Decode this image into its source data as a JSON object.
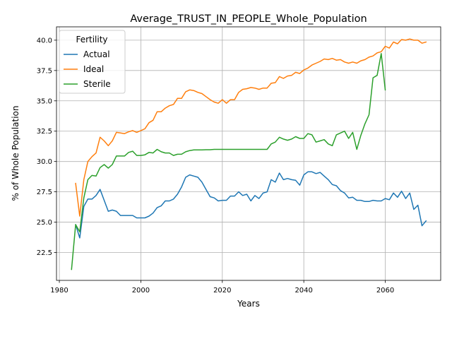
{
  "chart_data": {
    "type": "line",
    "title": "Average_TRUST_IN_PEOPLE_Whole_Population",
    "xlabel": "Years",
    "ylabel": "% of Whole Population",
    "xlim": [
      1979.3,
      1973.6
    ],
    "ylim": [
      20.2,
      41.1
    ],
    "xticks": [
      1980,
      2000,
      2020,
      2040,
      2060
    ],
    "yticks": [
      22.5,
      25.0,
      27.5,
      30.0,
      32.5,
      35.0,
      37.5,
      40.0
    ],
    "grid": true,
    "legend": {
      "title": "Fertility",
      "position": "top-left"
    },
    "series": [
      {
        "name": "Actual",
        "color": "#1f77b4",
        "x": [
          1984,
          1985,
          1986,
          1987,
          1988,
          1989,
          1990,
          1991,
          1992,
          1993,
          1994,
          1995,
          1996,
          1997,
          1998,
          1999,
          2000,
          2001,
          2002,
          2003,
          2004,
          2005,
          2006,
          2007,
          2008,
          2009,
          2010,
          2011,
          2012,
          2013,
          2014,
          2015,
          2016,
          2017,
          2018,
          2019,
          2020,
          2021,
          2022,
          2023,
          2024,
          2025,
          2026,
          2027,
          2028,
          2029,
          2030,
          2031,
          2032,
          2033,
          2034,
          2035,
          2036,
          2037,
          2038,
          2039,
          2040,
          2041,
          2042,
          2043,
          2044,
          2045,
          2046,
          2047,
          2048,
          2049,
          2050,
          2051,
          2052,
          2053,
          2054,
          2055,
          2056,
          2057,
          2058,
          2059,
          2060,
          2061,
          2062,
          2063,
          2064,
          2065,
          2066,
          2067,
          2068,
          2069,
          2070
        ],
        "y": [
          24.8,
          23.7,
          26.3,
          26.9,
          26.9,
          27.2,
          27.7,
          26.8,
          25.9,
          26.0,
          25.9,
          25.55,
          25.55,
          25.55,
          25.55,
          25.35,
          25.35,
          25.35,
          25.5,
          25.75,
          26.2,
          26.35,
          26.75,
          26.75,
          26.9,
          27.3,
          27.9,
          28.7,
          28.9,
          28.8,
          28.7,
          28.3,
          27.7,
          27.1,
          27.0,
          26.75,
          26.8,
          26.8,
          27.15,
          27.15,
          27.5,
          27.2,
          27.3,
          26.75,
          27.2,
          26.95,
          27.4,
          27.5,
          28.5,
          28.3,
          29.05,
          28.5,
          28.6,
          28.5,
          28.45,
          28.05,
          28.9,
          29.15,
          29.15,
          29.0,
          29.1,
          28.8,
          28.5,
          28.1,
          28.0,
          27.6,
          27.4,
          27.0,
          27.05,
          26.8,
          26.8,
          26.7,
          26.7,
          26.8,
          26.75,
          26.75,
          26.95,
          26.85,
          27.4,
          27.05,
          27.55,
          26.95,
          27.4,
          26.05,
          26.4,
          24.7,
          25.1
        ]
      },
      {
        "name": "Ideal",
        "color": "#ff7f0e",
        "x": [
          1984,
          1985,
          1986,
          1987,
          1988,
          1989,
          1990,
          1991,
          1992,
          1993,
          1994,
          1995,
          1996,
          1997,
          1998,
          1999,
          2000,
          2001,
          2002,
          2003,
          2004,
          2005,
          2006,
          2007,
          2008,
          2009,
          2010,
          2011,
          2012,
          2013,
          2014,
          2015,
          2016,
          2017,
          2018,
          2019,
          2020,
          2021,
          2022,
          2023,
          2024,
          2025,
          2026,
          2027,
          2028,
          2029,
          2030,
          2031,
          2032,
          2033,
          2034,
          2035,
          2036,
          2037,
          2038,
          2039,
          2040,
          2041,
          2042,
          2043,
          2044,
          2045,
          2046,
          2047,
          2048,
          2049,
          2050,
          2051,
          2052,
          2053,
          2054,
          2055,
          2056,
          2057,
          2058,
          2059,
          2060,
          2061,
          2062,
          2063,
          2064,
          2065,
          2066,
          2067,
          2068,
          2069,
          2070
        ],
        "y": [
          28.2,
          25.5,
          28.5,
          30.0,
          30.4,
          30.7,
          32.0,
          31.7,
          31.3,
          31.7,
          32.4,
          32.35,
          32.3,
          32.45,
          32.55,
          32.4,
          32.55,
          32.7,
          33.2,
          33.4,
          34.1,
          34.1,
          34.4,
          34.6,
          34.7,
          35.2,
          35.2,
          35.75,
          35.9,
          35.85,
          35.7,
          35.6,
          35.35,
          35.1,
          34.9,
          34.8,
          35.1,
          34.8,
          35.1,
          35.1,
          35.7,
          35.95,
          36.0,
          36.1,
          36.05,
          35.95,
          36.05,
          36.05,
          36.45,
          36.5,
          37.0,
          36.85,
          37.05,
          37.1,
          37.35,
          37.25,
          37.55,
          37.7,
          37.95,
          38.1,
          38.25,
          38.45,
          38.4,
          38.5,
          38.35,
          38.4,
          38.2,
          38.1,
          38.2,
          38.1,
          38.3,
          38.4,
          38.6,
          38.7,
          38.95,
          39.05,
          39.5,
          39.35,
          39.85,
          39.7,
          40.05,
          40.0,
          40.1,
          40.0,
          40.0,
          39.75,
          39.85
        ]
      },
      {
        "name": "Sterile",
        "color": "#2ca02c",
        "x": [
          1983,
          1984,
          1985,
          1986,
          1987,
          1988,
          1989,
          1990,
          1991,
          1992,
          1993,
          1994,
          1995,
          1996,
          1997,
          1998,
          1999,
          2000,
          2001,
          2002,
          2003,
          2004,
          2005,
          2006,
          2007,
          2008,
          2009,
          2010,
          2011,
          2012,
          2013,
          2014,
          2015,
          2016,
          2017,
          2018,
          2019,
          2020,
          2021,
          2022,
          2023,
          2024,
          2025,
          2026,
          2027,
          2028,
          2029,
          2030,
          2031,
          2032,
          2033,
          2034,
          2035,
          2036,
          2037,
          2038,
          2039,
          2040,
          2041,
          2042,
          2043,
          2044,
          2045,
          2046,
          2047,
          2048,
          2049,
          2050,
          2051,
          2052,
          2053,
          2054,
          2055,
          2056,
          2057,
          2058,
          2059,
          2060
        ],
        "y": [
          21.1,
          24.8,
          24.2,
          27.0,
          28.5,
          28.85,
          28.8,
          29.5,
          29.75,
          29.45,
          29.75,
          30.45,
          30.45,
          30.45,
          30.75,
          30.85,
          30.5,
          30.5,
          30.55,
          30.75,
          30.7,
          31.0,
          30.8,
          30.7,
          30.7,
          30.5,
          30.6,
          30.6,
          30.8,
          30.9,
          30.95,
          30.95,
          30.95,
          30.97,
          30.97,
          31.0,
          31.0,
          31.0,
          31.0,
          31.0,
          31.0,
          31.0,
          31.0,
          31.0,
          31.0,
          31.0,
          31.0,
          31.0,
          31.0,
          31.45,
          31.6,
          32.0,
          31.85,
          31.75,
          31.85,
          32.05,
          31.9,
          31.9,
          32.3,
          32.2,
          31.6,
          31.7,
          31.8,
          31.45,
          31.3,
          32.2,
          32.35,
          32.5,
          31.9,
          32.4,
          31.0,
          32.15,
          33.1,
          33.85,
          36.9,
          37.1,
          38.9,
          35.9
        ]
      }
    ]
  }
}
